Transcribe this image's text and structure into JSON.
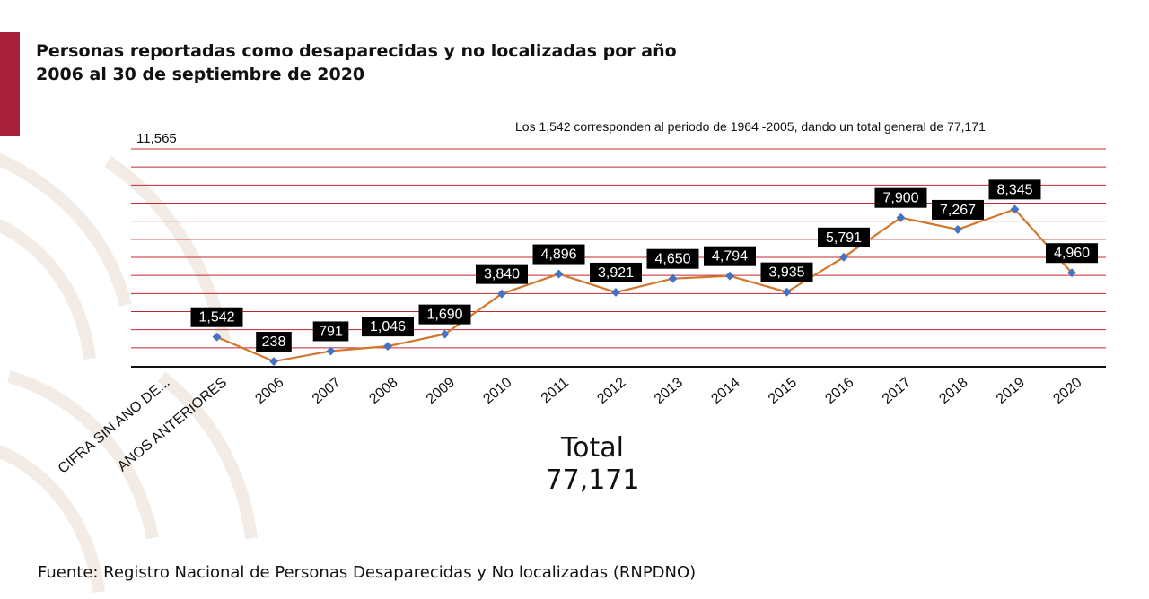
{
  "title_line1": "Personas reportadas como desaparecidas y no localizadas por año",
  "title_line2": "2006 al 30 de septiembre de 2020",
  "note": "Los 1,542 corresponden al periodo de 1964 -2005, dando un total general de 77,171",
  "ymax_label": "11,565",
  "total_label": "Total",
  "total_value": "77,171",
  "source": "Fuente: Registro Nacional de Personas Desaparecidas y No localizadas (RNPDNO)",
  "colors": {
    "accent": "#a81f3c",
    "gridline": "#c0282d",
    "line": "#d2762b",
    "marker": "#4472c4",
    "label_bg": "#000000",
    "label_text": "#ffffff"
  },
  "chart_data": {
    "type": "line",
    "categories": [
      "CIFRA SIN AÑO DE…",
      "AÑOS ANTERIORES",
      "2006",
      "2007",
      "2008",
      "2009",
      "2010",
      "2011",
      "2012",
      "2013",
      "2014",
      "2015",
      "2016",
      "2017",
      "2018",
      "2019",
      "2020"
    ],
    "tick_labels": [
      "CIFRA SIN ANO DE...",
      "ANOS ANTERIORES",
      "2006",
      "2007",
      "2008",
      "2009",
      "2010",
      "2011",
      "2012",
      "2013",
      "2014",
      "2015",
      "2016",
      "2017",
      "2018",
      "2019",
      "2020"
    ],
    "values": [
      null,
      1542,
      238,
      791,
      1046,
      1690,
      3840,
      4896,
      3921,
      4650,
      4794,
      3935,
      5791,
      7900,
      7267,
      8345,
      4960
    ],
    "data_labels": [
      "",
      "1,542",
      "238",
      "791",
      "1,046",
      "1,690",
      "3,840",
      "4,896",
      "3,921",
      "4,650",
      "4,794",
      "3,935",
      "5,791",
      "7,900",
      "7,267",
      "8,345",
      "4,960"
    ],
    "ylim": [
      0,
      11565
    ],
    "grid": true,
    "legend": "none"
  }
}
